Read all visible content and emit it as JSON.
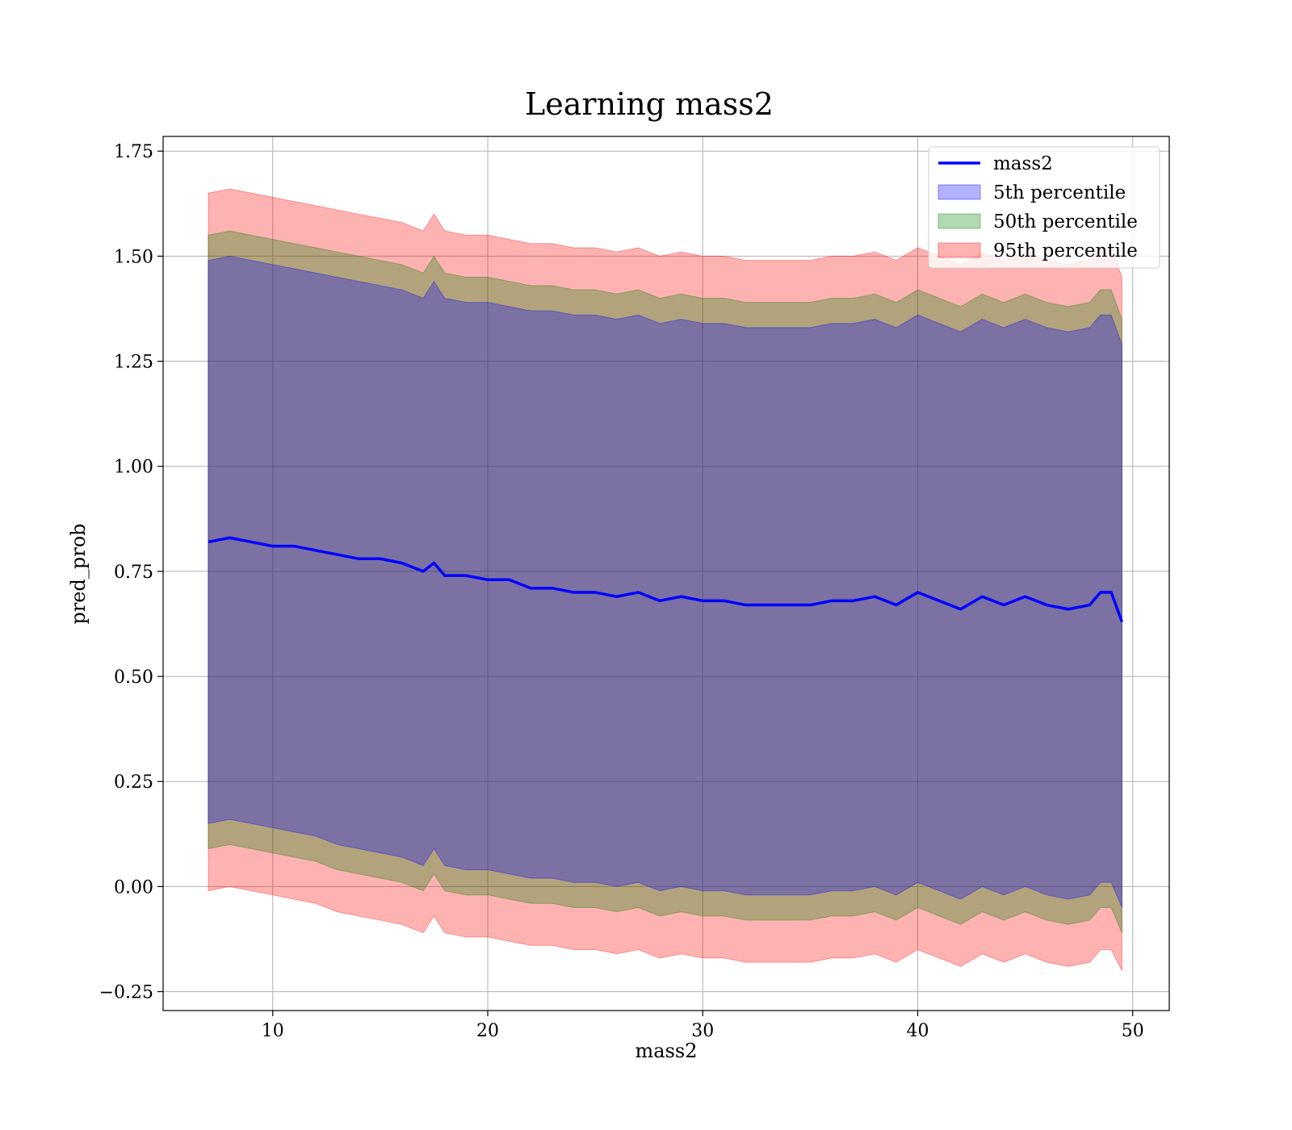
{
  "chart_data": {
    "type": "area",
    "title": "Learning mass2",
    "xlabel": "mass2",
    "ylabel": "pred_prob",
    "xlim": [
      4.9,
      51.7
    ],
    "ylim": [
      -0.295,
      1.785
    ],
    "xticks": [
      10,
      20,
      30,
      40,
      50
    ],
    "xtick_labels": [
      "10",
      "20",
      "30",
      "40",
      "50"
    ],
    "yticks": [
      -0.25,
      0,
      0.25,
      0.5,
      0.75,
      1.0,
      1.25,
      1.5,
      1.75
    ],
    "ytick_labels": [
      "−0.25",
      "0.00",
      "0.25",
      "0.50",
      "0.75",
      "1.00",
      "1.25",
      "1.50",
      "1.75"
    ],
    "grid": true,
    "legend_position": "top-right",
    "x": [
      7.0,
      8.0,
      9.0,
      10.0,
      11.0,
      12.0,
      13.0,
      14.0,
      15.0,
      16.0,
      17.0,
      17.5,
      18.0,
      19.0,
      20.0,
      21.0,
      22.0,
      23.0,
      24.0,
      25.0,
      26.0,
      27.0,
      28.0,
      29.0,
      30.0,
      31.0,
      32.0,
      33.0,
      34.0,
      35.0,
      36.0,
      37.0,
      38.0,
      39.0,
      40.0,
      41.0,
      42.0,
      43.0,
      44.0,
      45.0,
      46.0,
      47.0,
      48.0,
      48.5,
      49.0,
      49.5
    ],
    "series": [
      {
        "name": "mass2",
        "kind": "line",
        "color": "#0000ff",
        "values": [
          0.82,
          0.83,
          0.82,
          0.81,
          0.81,
          0.8,
          0.79,
          0.78,
          0.78,
          0.77,
          0.75,
          0.77,
          0.74,
          0.74,
          0.73,
          0.73,
          0.71,
          0.71,
          0.7,
          0.7,
          0.69,
          0.7,
          0.68,
          0.69,
          0.68,
          0.68,
          0.67,
          0.67,
          0.67,
          0.67,
          0.68,
          0.68,
          0.69,
          0.67,
          0.7,
          0.68,
          0.66,
          0.69,
          0.67,
          0.69,
          0.67,
          0.66,
          0.67,
          0.7,
          0.7,
          0.63
        ]
      },
      {
        "name": "5th percentile",
        "kind": "band",
        "color": "#0000ff",
        "opacity": 0.3,
        "lower": [
          0.15,
          0.16,
          0.15,
          0.14,
          0.13,
          0.12,
          0.1,
          0.09,
          0.08,
          0.07,
          0.05,
          0.09,
          0.05,
          0.04,
          0.04,
          0.03,
          0.02,
          0.02,
          0.01,
          0.01,
          0.0,
          0.01,
          -0.01,
          0.0,
          -0.01,
          -0.01,
          -0.02,
          -0.02,
          -0.02,
          -0.02,
          -0.01,
          -0.01,
          0.0,
          -0.02,
          0.01,
          -0.01,
          -0.03,
          0.0,
          -0.02,
          0.0,
          -0.02,
          -0.03,
          -0.02,
          0.01,
          0.01,
          -0.05
        ],
        "upper": [
          1.49,
          1.5,
          1.49,
          1.48,
          1.47,
          1.46,
          1.45,
          1.44,
          1.43,
          1.42,
          1.4,
          1.44,
          1.4,
          1.39,
          1.39,
          1.38,
          1.37,
          1.37,
          1.36,
          1.36,
          1.35,
          1.36,
          1.34,
          1.35,
          1.34,
          1.34,
          1.33,
          1.33,
          1.33,
          1.33,
          1.34,
          1.34,
          1.35,
          1.33,
          1.36,
          1.34,
          1.32,
          1.35,
          1.33,
          1.35,
          1.33,
          1.32,
          1.33,
          1.36,
          1.36,
          1.29
        ]
      },
      {
        "name": "50th percentile",
        "kind": "band",
        "color": "#008000",
        "opacity": 0.3,
        "lower": [
          0.09,
          0.1,
          0.09,
          0.08,
          0.07,
          0.06,
          0.04,
          0.03,
          0.02,
          0.01,
          -0.01,
          0.03,
          -0.01,
          -0.02,
          -0.02,
          -0.03,
          -0.04,
          -0.04,
          -0.05,
          -0.05,
          -0.06,
          -0.05,
          -0.07,
          -0.06,
          -0.07,
          -0.07,
          -0.08,
          -0.08,
          -0.08,
          -0.08,
          -0.07,
          -0.07,
          -0.06,
          -0.08,
          -0.05,
          -0.07,
          -0.09,
          -0.06,
          -0.08,
          -0.06,
          -0.08,
          -0.09,
          -0.08,
          -0.05,
          -0.05,
          -0.11
        ],
        "upper": [
          1.55,
          1.56,
          1.55,
          1.54,
          1.53,
          1.52,
          1.51,
          1.5,
          1.49,
          1.48,
          1.46,
          1.5,
          1.46,
          1.45,
          1.45,
          1.44,
          1.43,
          1.43,
          1.42,
          1.42,
          1.41,
          1.42,
          1.4,
          1.41,
          1.4,
          1.4,
          1.39,
          1.39,
          1.39,
          1.39,
          1.4,
          1.4,
          1.41,
          1.39,
          1.42,
          1.4,
          1.38,
          1.41,
          1.39,
          1.41,
          1.39,
          1.38,
          1.39,
          1.42,
          1.42,
          1.35
        ]
      },
      {
        "name": "95th percentile",
        "kind": "band",
        "color": "#ff0000",
        "opacity": 0.3,
        "lower": [
          -0.01,
          0.0,
          -0.01,
          -0.02,
          -0.03,
          -0.04,
          -0.06,
          -0.07,
          -0.08,
          -0.09,
          -0.11,
          -0.07,
          -0.11,
          -0.12,
          -0.12,
          -0.13,
          -0.14,
          -0.14,
          -0.15,
          -0.15,
          -0.16,
          -0.15,
          -0.17,
          -0.16,
          -0.17,
          -0.17,
          -0.18,
          -0.18,
          -0.18,
          -0.18,
          -0.17,
          -0.17,
          -0.16,
          -0.18,
          -0.15,
          -0.17,
          -0.19,
          -0.16,
          -0.18,
          -0.16,
          -0.18,
          -0.19,
          -0.18,
          -0.15,
          -0.15,
          -0.2
        ],
        "upper": [
          1.65,
          1.66,
          1.65,
          1.64,
          1.63,
          1.62,
          1.61,
          1.6,
          1.59,
          1.58,
          1.56,
          1.6,
          1.56,
          1.55,
          1.55,
          1.54,
          1.53,
          1.53,
          1.52,
          1.52,
          1.51,
          1.52,
          1.5,
          1.51,
          1.5,
          1.5,
          1.49,
          1.49,
          1.49,
          1.49,
          1.5,
          1.5,
          1.51,
          1.49,
          1.52,
          1.5,
          1.48,
          1.51,
          1.49,
          1.51,
          1.49,
          1.48,
          1.49,
          1.52,
          1.52,
          1.45
        ]
      }
    ]
  }
}
